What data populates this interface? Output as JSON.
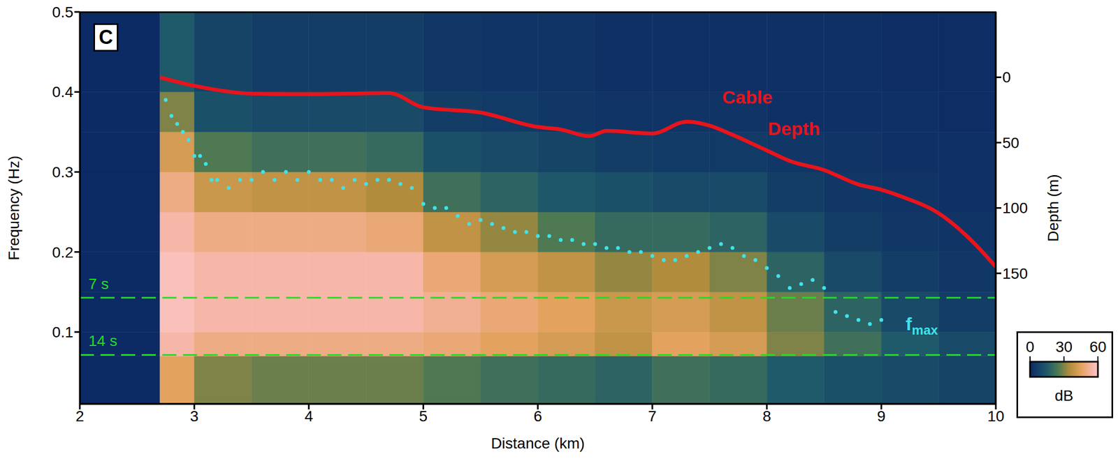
{
  "chart_data": {
    "type": "heatmap",
    "panel_label": "C",
    "xlabel": "Distance (km)",
    "ylabel": "Frequency (Hz)",
    "y2label": "Depth (m)",
    "xlim": [
      2,
      10
    ],
    "xticks": [
      2,
      3,
      4,
      5,
      6,
      7,
      8,
      9,
      10
    ],
    "ylim": [
      0.01,
      0.5
    ],
    "yticks": [
      0.1,
      0.2,
      0.3,
      0.4,
      0.5
    ],
    "y2lim": [
      250,
      -50
    ],
    "y2ticks": [
      0,
      50,
      100,
      150
    ],
    "heatmap": {
      "x_edges": [
        2,
        2.7,
        3,
        3.5,
        4,
        4.5,
        5,
        5.5,
        6,
        6.5,
        7,
        7.5,
        8,
        8.5,
        9,
        9.5,
        10
      ],
      "y_edges": [
        0.01,
        0.07,
        0.1,
        0.15,
        0.2,
        0.25,
        0.3,
        0.35,
        0.4,
        0.5
      ],
      "cells_by_x": [
        [
          0,
          0,
          0,
          0,
          0,
          0,
          0,
          0,
          0
        ],
        [
          45,
          55,
          58,
          58,
          55,
          50,
          42,
          30,
          15
        ],
        [
          30,
          50,
          55,
          55,
          50,
          40,
          25,
          12,
          8
        ],
        [
          28,
          50,
          55,
          55,
          50,
          38,
          22,
          10,
          6
        ],
        [
          28,
          50,
          55,
          55,
          50,
          38,
          22,
          10,
          6
        ],
        [
          28,
          50,
          55,
          55,
          48,
          35,
          20,
          10,
          6
        ],
        [
          25,
          48,
          52,
          48,
          38,
          22,
          12,
          6,
          4
        ],
        [
          22,
          45,
          48,
          42,
          32,
          18,
          10,
          5,
          3
        ],
        [
          20,
          42,
          45,
          38,
          25,
          14,
          8,
          4,
          3
        ],
        [
          18,
          38,
          40,
          32,
          20,
          12,
          6,
          3,
          2
        ],
        [
          22,
          45,
          42,
          35,
          20,
          10,
          5,
          3,
          2
        ],
        [
          20,
          42,
          38,
          30,
          18,
          10,
          5,
          3,
          2
        ],
        [
          15,
          30,
          28,
          18,
          10,
          6,
          4,
          2,
          2
        ],
        [
          12,
          22,
          18,
          10,
          6,
          4,
          3,
          2,
          2
        ],
        [
          10,
          15,
          10,
          6,
          4,
          3,
          2,
          2,
          1
        ],
        [
          8,
          10,
          6,
          4,
          3,
          2,
          2,
          1,
          1
        ]
      ]
    },
    "colorbar": {
      "range": [
        0,
        60
      ],
      "ticks": [
        0,
        30,
        60
      ],
      "label": "dB"
    },
    "series": [
      {
        "type": "line",
        "axis": "y2",
        "color": "#e8141c",
        "x": [
          2.7,
          3.0,
          3.5,
          4.0,
          4.7,
          5.0,
          5.5,
          6.0,
          6.2,
          6.45,
          6.6,
          7.0,
          7.3,
          7.5,
          7.7,
          8.0,
          8.2,
          8.5,
          8.8,
          9.0,
          9.2,
          9.5,
          9.8,
          10.0
        ],
        "values": [
          0,
          6.5,
          12.5,
          13,
          12,
          23,
          27,
          38,
          40,
          45,
          41,
          43,
          34,
          37,
          44,
          56,
          64,
          71,
          82,
          86,
          92,
          104,
          126,
          145
        ]
      },
      {
        "type": "scatter",
        "marker": "circle",
        "color": "#3fe3ea",
        "x": [
          2.75,
          2.8,
          2.85,
          2.9,
          2.95,
          3.0,
          3.05,
          3.1,
          3.15,
          3.2,
          3.3,
          3.4,
          3.5,
          3.6,
          3.7,
          3.8,
          3.9,
          4.0,
          4.1,
          4.2,
          4.3,
          4.4,
          4.5,
          4.6,
          4.7,
          4.8,
          4.9,
          5.0,
          5.1,
          5.2,
          5.3,
          5.4,
          5.5,
          5.6,
          5.7,
          5.8,
          5.9,
          6.0,
          6.1,
          6.2,
          6.3,
          6.4,
          6.5,
          6.6,
          6.7,
          6.8,
          6.9,
          7.0,
          7.1,
          7.2,
          7.3,
          7.4,
          7.5,
          7.6,
          7.7,
          7.8,
          7.9,
          8.0,
          8.1,
          8.2,
          8.3,
          8.4,
          8.5,
          8.6,
          8.7,
          8.8,
          8.9,
          9.0
        ],
        "values": [
          0.39,
          0.37,
          0.36,
          0.35,
          0.34,
          0.32,
          0.32,
          0.31,
          0.29,
          0.29,
          0.28,
          0.29,
          0.29,
          0.3,
          0.29,
          0.3,
          0.29,
          0.3,
          0.29,
          0.29,
          0.28,
          0.29,
          0.285,
          0.29,
          0.29,
          0.285,
          0.28,
          0.26,
          0.255,
          0.255,
          0.245,
          0.235,
          0.24,
          0.235,
          0.23,
          0.225,
          0.225,
          0.22,
          0.22,
          0.215,
          0.215,
          0.21,
          0.21,
          0.205,
          0.205,
          0.2,
          0.2,
          0.195,
          0.19,
          0.19,
          0.195,
          0.2,
          0.205,
          0.21,
          0.205,
          0.195,
          0.19,
          0.18,
          0.17,
          0.155,
          0.16,
          0.165,
          0.155,
          0.125,
          0.12,
          0.115,
          0.11,
          0.115
        ]
      }
    ],
    "hlines": [
      {
        "y": 0.1429,
        "label": "7 s",
        "color": "#22dd22",
        "line_style": "dashed"
      },
      {
        "y": 0.0714,
        "label": "14 s",
        "color": "#22dd22",
        "line_style": "dashed"
      }
    ],
    "annotations": [
      {
        "text": "Cable Depth",
        "color": "#e8141c"
      },
      {
        "text": "f",
        "subscript": "max",
        "color": "#3fe3ea"
      }
    ]
  }
}
